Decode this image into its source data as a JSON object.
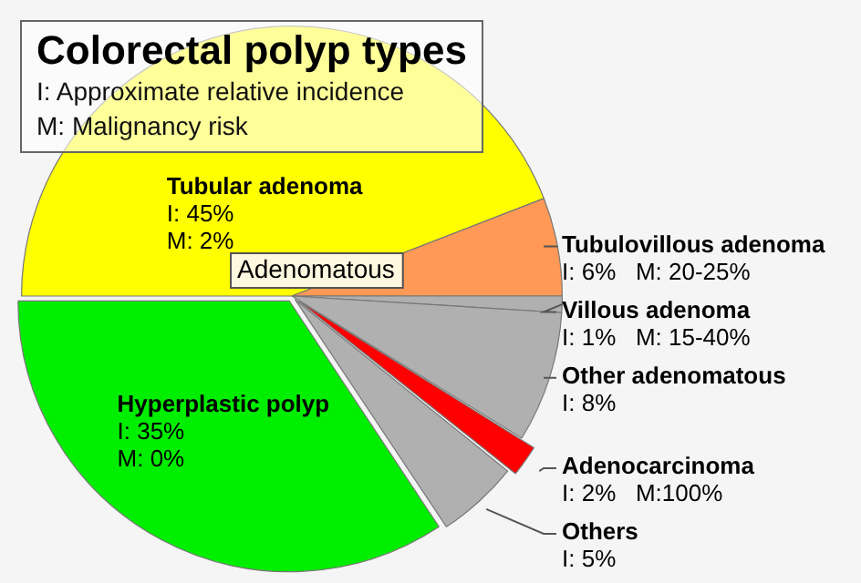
{
  "chart_data": {
    "type": "pie",
    "title": "Colorectal polyp types",
    "subtitle": "I: Approximate relative incidence\nM: Malignancy risk",
    "categories": [
      "Tubular adenoma",
      "Tubulovillous adenoma",
      "Villous adenoma",
      "Other adenomatous",
      "Adenocarcinoma",
      "Others",
      "Hyperplastic polyp"
    ],
    "values": [
      45,
      6,
      1,
      8,
      2,
      5,
      35
    ],
    "colors": [
      "#ffff00",
      "#ff9955",
      "#b0b0b0",
      "#b0b0b0",
      "#ff0000",
      "#b0b0b0",
      "#00ee00"
    ],
    "value_labels": [
      "I: 45%\nM: 2%",
      "I: 6%   M: 20-25%",
      "I: 1%   M: 15-40%",
      "I: 8%",
      "I: 2%   M:100%",
      "I: 5%",
      "I: 35%\nM: 0%"
    ],
    "annotations": [
      "Adenomatous"
    ],
    "legend": false
  }
}
